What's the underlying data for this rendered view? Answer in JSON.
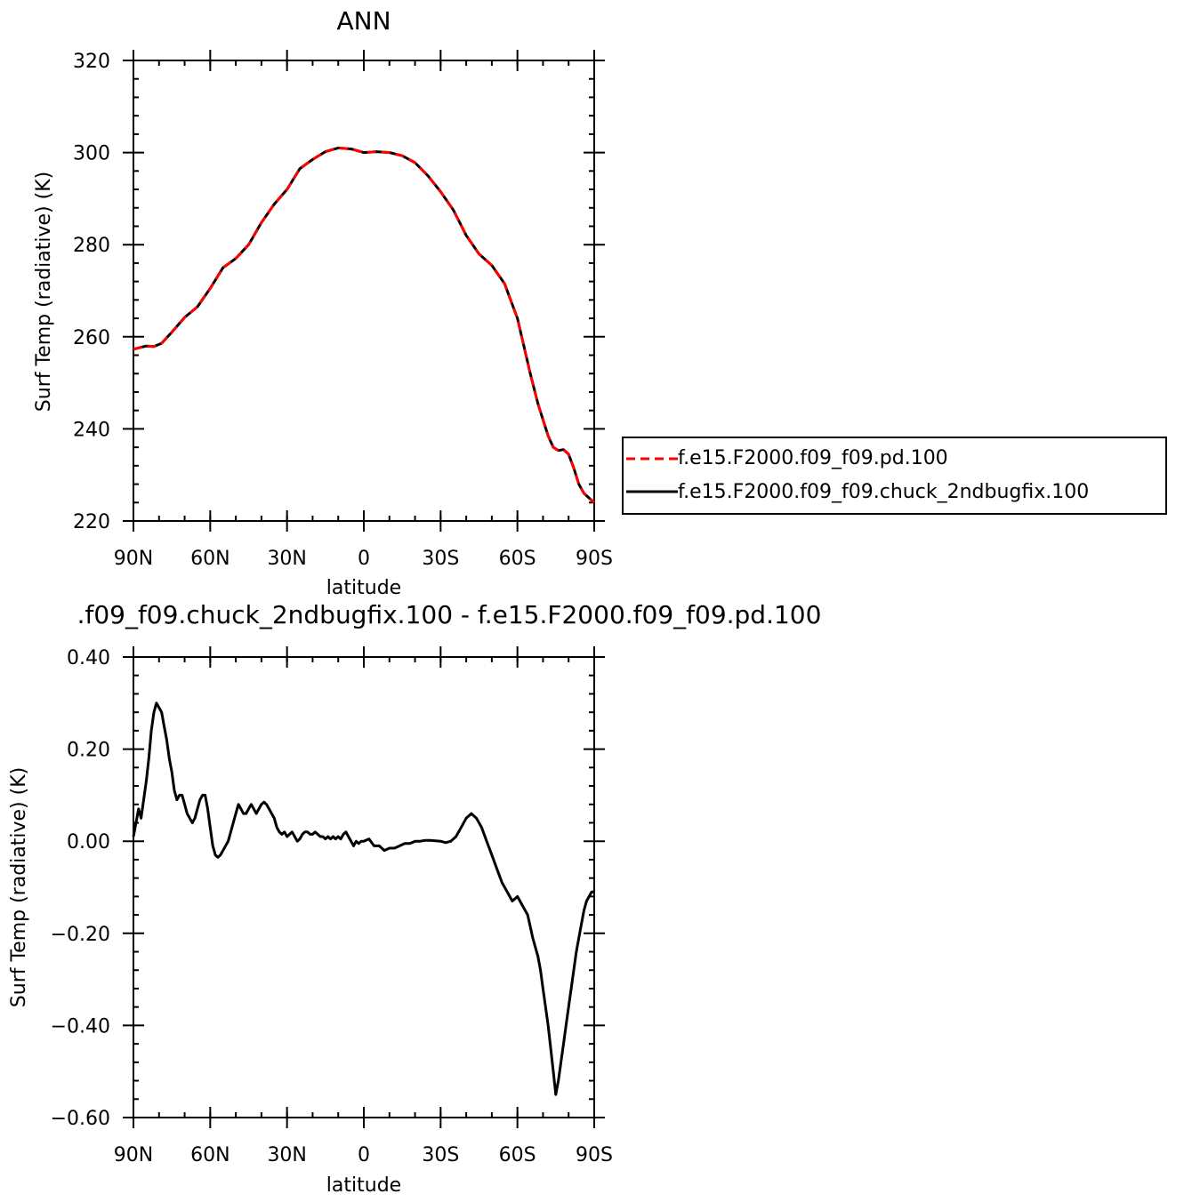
{
  "chart_data": [
    {
      "type": "line",
      "title": "ANN",
      "xlabel": "latitude",
      "ylabel": "Surf Temp (radiative) (K)",
      "xlim": [
        90,
        -90
      ],
      "ylim": [
        220,
        320
      ],
      "x_ticks": [
        90,
        60,
        30,
        0,
        -30,
        -60,
        -90
      ],
      "x_tick_labels": [
        "90N",
        "60N",
        "30N",
        "0",
        "30S",
        "60S",
        "90S"
      ],
      "y_ticks": [
        220,
        240,
        260,
        280,
        300,
        320
      ],
      "y_tick_labels": [
        "220",
        "240",
        "260",
        "280",
        "300",
        "320"
      ],
      "legend_position": "right",
      "series": [
        {
          "name": "f.e15.F2000.f09_f09.pd.100",
          "color": "#ff0000",
          "dash": "dashed",
          "x": [
            90,
            85,
            82,
            79,
            75,
            70,
            65,
            60,
            55,
            50,
            45,
            40,
            35,
            30,
            25,
            20,
            15,
            10,
            5,
            0,
            -5,
            -10,
            -15,
            -20,
            -25,
            -30,
            -35,
            -40,
            -45,
            -50,
            -55,
            -60,
            -65,
            -68,
            -70,
            -72,
            -74,
            -76,
            -78,
            -80,
            -82,
            -84,
            -86,
            -88,
            -90
          ],
          "y": [
            257.3,
            258.0,
            257.9,
            258.6,
            261.0,
            264.2,
            266.5,
            270.5,
            275.0,
            277.0,
            280.0,
            284.8,
            288.8,
            292.0,
            296.5,
            298.5,
            300.2,
            301.0,
            300.8,
            300.0,
            300.2,
            300.0,
            299.3,
            297.8,
            295.0,
            291.5,
            287.5,
            282.0,
            278.0,
            275.5,
            271.5,
            264.0,
            252.0,
            245.5,
            242.0,
            238.5,
            236.0,
            235.3,
            235.5,
            234.5,
            231.5,
            228.0,
            226.0,
            225.0,
            224.0
          ]
        },
        {
          "name": "f.e15.F2000.f09_f09.chuck_2ndbugfix.100",
          "color": "#000000",
          "dash": "solid",
          "x": [
            90,
            85,
            82,
            79,
            75,
            70,
            65,
            60,
            55,
            50,
            45,
            40,
            35,
            30,
            25,
            20,
            15,
            10,
            5,
            0,
            -5,
            -10,
            -15,
            -20,
            -25,
            -30,
            -35,
            -40,
            -45,
            -50,
            -55,
            -60,
            -65,
            -68,
            -70,
            -72,
            -74,
            -76,
            -78,
            -80,
            -82,
            -84,
            -86,
            -88,
            -90
          ],
          "y": [
            257.3,
            258.0,
            257.9,
            258.6,
            261.0,
            264.2,
            266.5,
            270.5,
            275.0,
            277.0,
            280.0,
            284.8,
            288.8,
            292.0,
            296.5,
            298.5,
            300.2,
            301.0,
            300.8,
            300.0,
            300.2,
            300.0,
            299.3,
            297.8,
            295.0,
            291.5,
            287.5,
            282.0,
            278.0,
            275.5,
            271.5,
            264.0,
            252.0,
            245.5,
            242.0,
            238.5,
            236.0,
            235.3,
            235.5,
            234.5,
            231.5,
            228.0,
            226.0,
            225.0,
            224.0
          ]
        }
      ]
    },
    {
      "type": "line",
      "title": ".f09_f09.chuck_2ndbugfix.100 - f.e15.F2000.f09_f09.pd.100",
      "xlabel": "latitude",
      "ylabel": "Surf Temp (radiative) (K)",
      "xlim": [
        90,
        -90
      ],
      "ylim": [
        -0.6,
        0.4
      ],
      "x_ticks": [
        90,
        60,
        30,
        0,
        -30,
        -60,
        -90
      ],
      "x_tick_labels": [
        "90N",
        "60N",
        "30N",
        "0",
        "30S",
        "60S",
        "90S"
      ],
      "y_ticks": [
        -0.6,
        -0.4,
        -0.2,
        0.0,
        0.2,
        0.4
      ],
      "y_tick_labels": [
        "−0.60",
        "−0.40",
        "−0.20",
        "0.00",
        "0.20",
        "0.40"
      ],
      "series": [
        {
          "color": "#000000",
          "dash": "solid",
          "x": [
            90,
            89,
            88,
            87,
            86,
            85,
            84,
            83,
            82,
            81,
            80,
            79,
            78,
            77,
            76,
            75,
            74,
            73,
            72,
            71,
            70,
            69,
            68,
            67,
            66,
            65,
            64,
            63,
            62,
            61,
            60,
            59,
            58,
            57,
            56,
            55,
            54,
            53,
            52,
            51,
            50,
            49,
            48,
            47,
            46,
            45,
            44,
            43,
            42,
            41,
            40,
            39,
            38,
            37,
            36,
            35,
            34,
            33,
            32,
            31,
            30,
            29,
            28,
            27,
            26,
            25,
            24,
            23,
            22,
            21,
            20,
            19,
            18,
            17,
            16,
            15,
            14,
            13,
            12,
            11,
            10,
            9,
            8,
            7,
            6,
            5,
            4,
            3,
            2,
            1,
            0,
            -2,
            -4,
            -6,
            -8,
            -10,
            -12,
            -14,
            -16,
            -18,
            -20,
            -22,
            -24,
            -26,
            -28,
            -30,
            -32,
            -34,
            -36,
            -38,
            -40,
            -42,
            -44,
            -46,
            -48,
            -50,
            -52,
            -54,
            -56,
            -58,
            -60,
            -62,
            -64,
            -66,
            -67,
            -68,
            -69,
            -70,
            -71,
            -72,
            -73,
            -74,
            -75,
            -76,
            -77,
            -78,
            -79,
            -80,
            -81,
            -82,
            -83,
            -84,
            -85,
            -86,
            -87,
            -88,
            -89,
            -90
          ],
          "y": [
            0.01,
            0.04,
            0.07,
            0.05,
            0.09,
            0.13,
            0.18,
            0.24,
            0.28,
            0.3,
            0.29,
            0.28,
            0.25,
            0.22,
            0.18,
            0.15,
            0.11,
            0.09,
            0.1,
            0.1,
            0.08,
            0.06,
            0.05,
            0.04,
            0.05,
            0.07,
            0.09,
            0.1,
            0.1,
            0.07,
            0.03,
            -0.01,
            -0.03,
            -0.035,
            -0.03,
            -0.02,
            -0.01,
            0.0,
            0.02,
            0.04,
            0.06,
            0.08,
            0.07,
            0.06,
            0.06,
            0.07,
            0.08,
            0.07,
            0.06,
            0.07,
            0.08,
            0.085,
            0.08,
            0.07,
            0.06,
            0.05,
            0.03,
            0.02,
            0.015,
            0.02,
            0.01,
            0.015,
            0.02,
            0.01,
            0.0,
            0.005,
            0.015,
            0.02,
            0.02,
            0.015,
            0.015,
            0.02,
            0.015,
            0.01,
            0.01,
            0.005,
            0.01,
            0.005,
            0.01,
            0.005,
            0.01,
            0.005,
            0.015,
            0.02,
            0.01,
            0.0,
            -0.01,
            0.0,
            -0.005,
            0.0,
            0.0,
            0.005,
            -0.01,
            -0.01,
            -0.02,
            -0.015,
            -0.015,
            -0.01,
            -0.005,
            -0.005,
            0.0,
            0.0,
            0.002,
            0.002,
            0.001,
            0.0,
            -0.003,
            0.0,
            0.01,
            0.03,
            0.05,
            0.06,
            0.05,
            0.03,
            0.0,
            -0.03,
            -0.06,
            -0.09,
            -0.11,
            -0.13,
            -0.12,
            -0.14,
            -0.16,
            -0.21,
            -0.23,
            -0.25,
            -0.28,
            -0.32,
            -0.36,
            -0.4,
            -0.45,
            -0.5,
            -0.55,
            -0.52,
            -0.48,
            -0.44,
            -0.4,
            -0.36,
            -0.32,
            -0.28,
            -0.24,
            -0.21,
            -0.18,
            -0.15,
            -0.13,
            -0.12,
            -0.11,
            -0.11
          ]
        }
      ]
    }
  ]
}
